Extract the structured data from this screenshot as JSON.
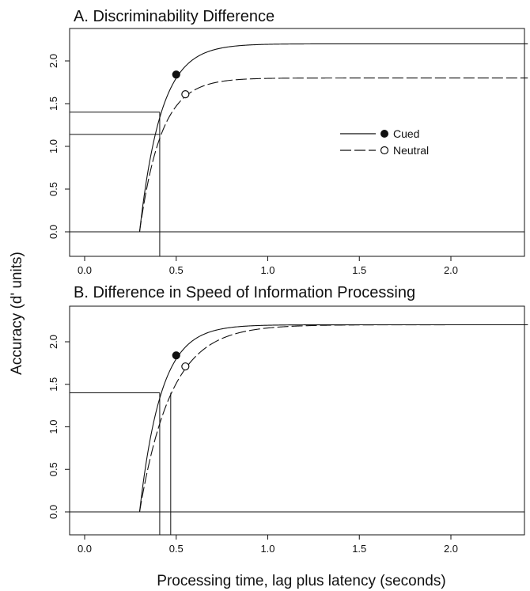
{
  "figure": {
    "ylabel": "Accuracy (d' units)",
    "xlabel": "Processing time, lag plus latency (seconds)"
  },
  "chart_data": [
    {
      "type": "line",
      "title": "A. Discriminability Difference",
      "xlim": [
        -0.1,
        2.4
      ],
      "ylim": [
        -0.3,
        2.4
      ],
      "x_ticks": [
        "0.0",
        "0.5",
        "1.0",
        "1.5",
        "2.0"
      ],
      "y_ticks": [
        "0.0",
        "0.5",
        "1.0",
        "1.5",
        "2.0"
      ],
      "legend": {
        "placement": "center-right",
        "entries": [
          "Cued",
          "Neutral"
        ]
      },
      "series": [
        {
          "name": "Cued",
          "style": "solid",
          "marker": "filled-circle",
          "asymptote": 2.2,
          "rate": 8.5,
          "intercept": 0.3,
          "point": [
            0.5,
            1.84
          ]
        },
        {
          "name": "Neutral",
          "style": "dashed",
          "marker": "open-circle",
          "asymptote": 1.8,
          "rate": 8.5,
          "intercept": 0.3,
          "point": [
            0.55,
            1.61
          ]
        }
      ],
      "reference_lines": {
        "horizontal": [
          0.0,
          1.4,
          1.14
        ],
        "vertical": [
          0.41
        ]
      }
    },
    {
      "type": "line",
      "title": "B. Difference in Speed of Information Processing",
      "xlim": [
        -0.1,
        2.4
      ],
      "ylim": [
        -0.3,
        2.4
      ],
      "x_ticks": [
        "0.0",
        "0.5",
        "1.0",
        "1.5",
        "2.0"
      ],
      "y_ticks": [
        "0.0",
        "0.5",
        "1.0",
        "1.5",
        "2.0"
      ],
      "series": [
        {
          "name": "Cued",
          "style": "solid",
          "marker": "filled-circle",
          "asymptote": 2.2,
          "rate": 8.5,
          "intercept": 0.3,
          "point": [
            0.5,
            1.84
          ]
        },
        {
          "name": "Neutral",
          "style": "dashed",
          "marker": "open-circle",
          "asymptote": 2.2,
          "rate": 5.8,
          "intercept": 0.3,
          "point": [
            0.55,
            1.71
          ]
        }
      ],
      "reference_lines": {
        "horizontal": [
          0.0,
          1.4
        ],
        "vertical": [
          0.41,
          0.47
        ]
      }
    }
  ]
}
